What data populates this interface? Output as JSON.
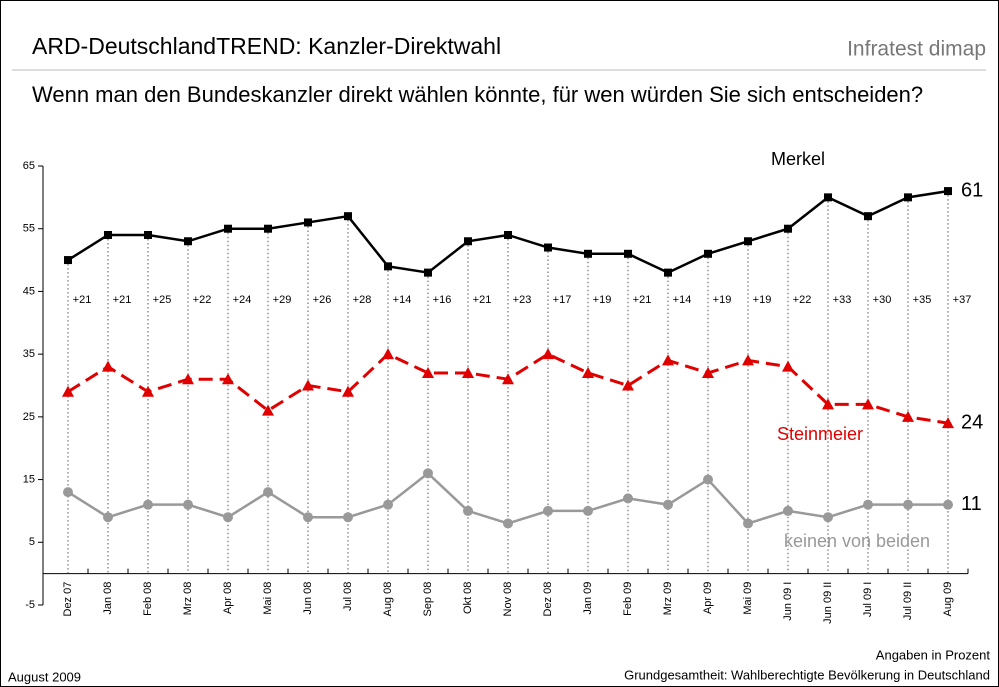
{
  "chart_data": {
    "type": "line",
    "title": "ARD-DeutschlandTREND: Kanzler-Direktwahl",
    "source": "Infratest dimap",
    "subtitle": "Wenn man den Bundeskanzler direkt wählen könnte, für wen würden Sie sich entscheiden?",
    "date_note": "August 2009",
    "unit_note": "Angaben in Prozent",
    "base_note": "Grundgesamtheit: Wahlberechtigte Bevölkerung in Deutschland",
    "categories": [
      "Dez 07",
      "Jan 08",
      "Feb 08",
      "Mrz 08",
      "Apr 08",
      "Mai 08",
      "Jun 08",
      "Jul 08",
      "Aug 08",
      "Sep 08",
      "Okt 08",
      "Nov 08",
      "Dez 08",
      "Jan 09",
      "Feb 09",
      "Mrz 09",
      "Apr 09",
      "Mai 09",
      "Jun 09 I",
      "Jun 09 II",
      "Jul 09 I",
      "Jul 09 II",
      "Aug 09"
    ],
    "series": [
      {
        "name": "Merkel",
        "color": "#000000",
        "marker": "square",
        "dashed": false,
        "values": [
          50,
          54,
          54,
          53,
          55,
          55,
          56,
          57,
          49,
          48,
          53,
          54,
          52,
          51,
          51,
          48,
          51,
          53,
          55,
          60,
          57,
          60,
          61
        ]
      },
      {
        "name": "Steinmeier",
        "color": "#e00000",
        "marker": "triangle",
        "dashed": true,
        "values": [
          29,
          33,
          29,
          31,
          31,
          26,
          30,
          29,
          35,
          32,
          32,
          31,
          35,
          32,
          30,
          34,
          32,
          34,
          33,
          27,
          27,
          25,
          24
        ]
      },
      {
        "name": "keinen von beiden",
        "color": "#999999",
        "marker": "circle",
        "dashed": false,
        "values": [
          13,
          9,
          11,
          11,
          9,
          13,
          9,
          9,
          11,
          16,
          10,
          8,
          10,
          10,
          12,
          11,
          15,
          8,
          10,
          9,
          11,
          11,
          11
        ]
      }
    ],
    "difference_labels": [
      "+21",
      "+21",
      "+25",
      "+22",
      "+24",
      "+29",
      "+26",
      "+28",
      "+14",
      "+16",
      "+21",
      "+23",
      "+17",
      "+19",
      "+21",
      "+14",
      "+19",
      "+19",
      "+22",
      "+33",
      "+30",
      "+35",
      "+37"
    ],
    "ylim": [
      -5,
      65
    ],
    "yticks": [
      -5,
      5,
      15,
      25,
      35,
      45,
      55,
      65
    ]
  }
}
